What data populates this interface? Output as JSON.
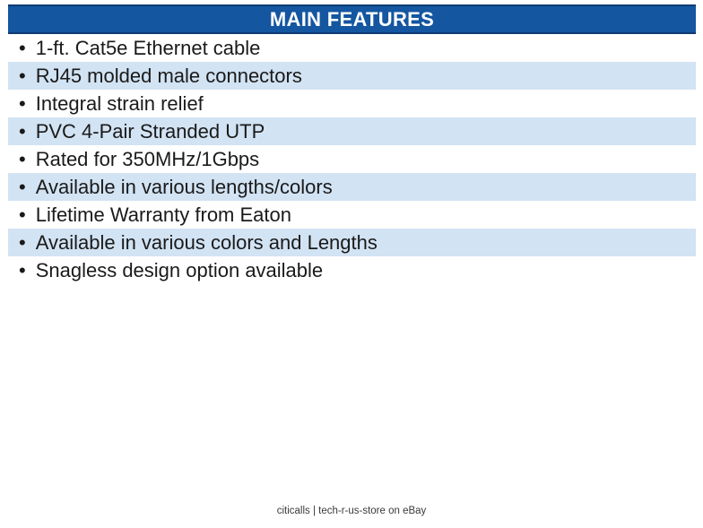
{
  "header": {
    "title": "MAIN FEATURES"
  },
  "list": {
    "bullet": "•",
    "items": [
      "1-ft. Cat5e Ethernet cable",
      "RJ45 molded male connectors",
      "Integral strain relief",
      "PVC 4-Pair Stranded UTP",
      "Rated for 350MHz/1Gbps",
      "Available in various lengths/colors",
      "Lifetime Warranty from Eaton",
      "Available in various colors and Lengths",
      "Snagless design option available"
    ]
  },
  "footer": {
    "caption": "citicalls | tech-r-us-store on eBay"
  },
  "colors": {
    "header_bg": "#1456A0",
    "header_border": "#0D3B72",
    "header_text": "#FFFFFF",
    "row_alt_bg": "#D2E3F3",
    "body_text": "#1A1A1A",
    "footer_text": "#3A3A3A"
  }
}
